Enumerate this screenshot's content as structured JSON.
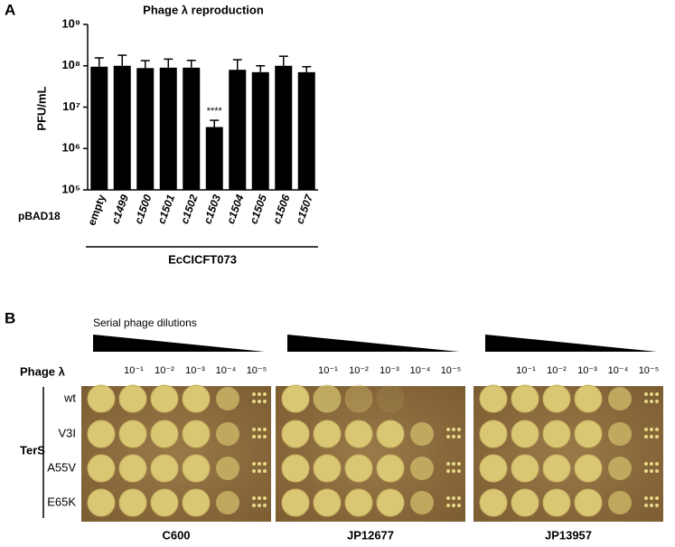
{
  "panel_labels": [
    "A",
    "B"
  ],
  "chart_data": {
    "type": "bar",
    "title": "Phage λ reproduction",
    "y_label": "PFU/mL",
    "y_scale": "log",
    "x_prefix": "pBAD18",
    "group_label": "EcCICFT073",
    "categories": [
      "empty",
      "c1499",
      "c1500",
      "c1501",
      "c1502",
      "c1503",
      "c1504",
      "c1505",
      "c1506",
      "c1507"
    ],
    "values": [
      95000000,
      100000000,
      88000000,
      90000000,
      90000000,
      3300000,
      80000000,
      70000000,
      100000000,
      70000000
    ],
    "errors": [
      60000000,
      80000000,
      45000000,
      55000000,
      45000000,
      1500000,
      60000000,
      30000000,
      70000000,
      25000000
    ],
    "color": "#000000",
    "ylim": [
      100000,
      1000000000
    ],
    "yticks": [
      {
        "value": 100000,
        "label": "10⁵"
      },
      {
        "value": 1000000,
        "label": "10⁶"
      },
      {
        "value": 10000000,
        "label": "10⁷"
      },
      {
        "value": 100000000,
        "label": "10⁸"
      },
      {
        "value": 1000000000,
        "label": "10⁹"
      }
    ],
    "annotations": [
      {
        "text": "****",
        "category": "c1503"
      }
    ]
  },
  "panel_b": {
    "dilution_title": "Serial phage dilutions",
    "phage_label": "Phage λ",
    "dilutions": [
      "10⁻¹",
      "10⁻²",
      "10⁻³",
      "10⁻⁴",
      "10⁻⁵"
    ],
    "row_group": "TerS",
    "rows": [
      "wt",
      "V3I",
      "A55V",
      "E65K"
    ],
    "strains": [
      "C600",
      "JP12677",
      "JP13957"
    ]
  }
}
